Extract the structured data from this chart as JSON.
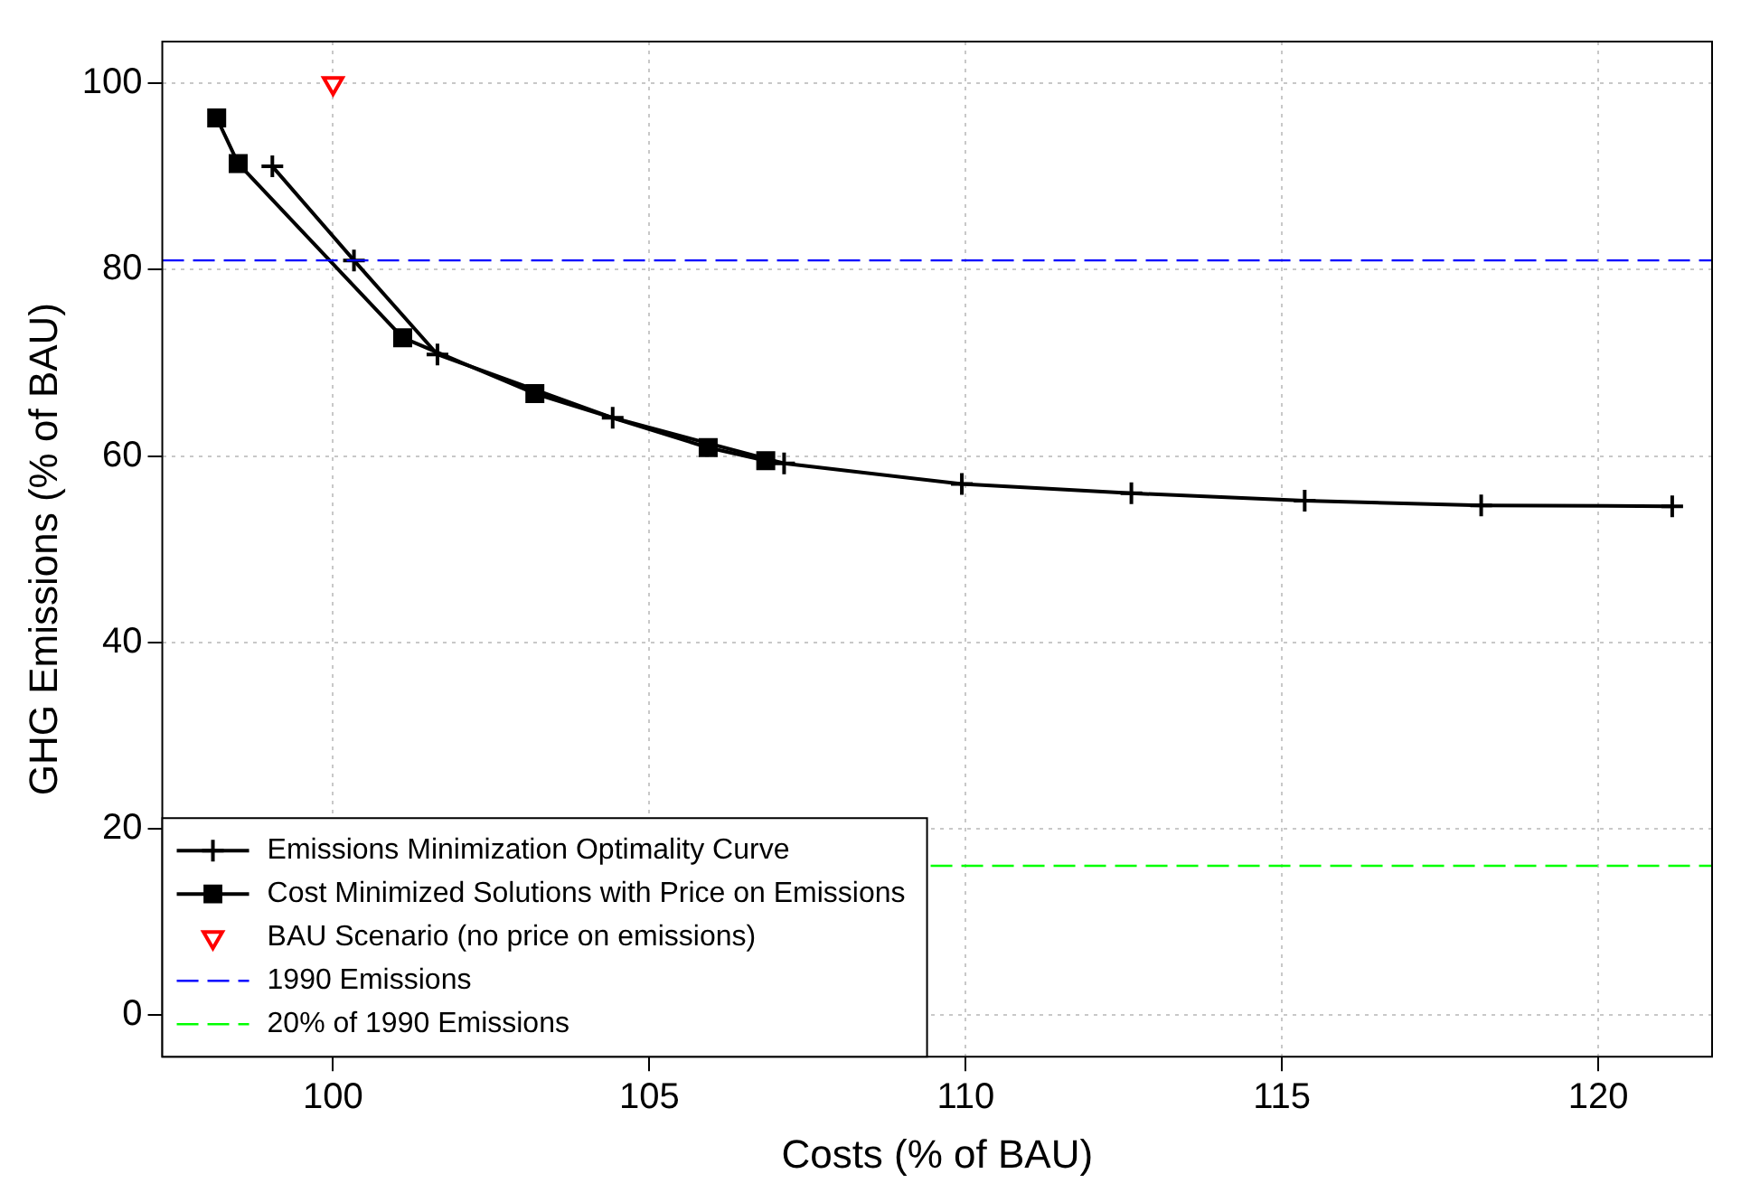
{
  "chart_data": {
    "type": "line",
    "xlabel": "Costs (% of BAU)",
    "ylabel": "GHG Emissions (% of BAU)",
    "xlim": [
      97.3,
      121.8
    ],
    "xticks": [
      100,
      105,
      110,
      115,
      120
    ],
    "ylim": [
      -4.5,
      104.5
    ],
    "yticks": [
      0,
      20,
      40,
      60,
      80,
      100
    ],
    "grid": true,
    "legend": "bottom left",
    "series": [
      {
        "name": "Emissions Minimization Optimality Curve",
        "marker": "cross",
        "color": "#000000",
        "x": [
          99.04,
          100.33,
          101.65,
          104.42,
          107.13,
          109.94,
          112.62,
          115.36,
          118.15,
          121.17
        ],
        "values": [
          91.1,
          81.0,
          70.9,
          64.1,
          59.2,
          57.0,
          56.0,
          55.2,
          54.7,
          54.6
        ]
      },
      {
        "name": "Cost Minimized Solutions with Price on Emissions",
        "marker": "square",
        "color": "#000000",
        "x": [
          98.16,
          98.5,
          101.1,
          103.19,
          105.93,
          106.84
        ],
        "values": [
          96.3,
          91.4,
          72.7,
          66.7,
          60.9,
          59.5
        ]
      },
      {
        "name": "BAU Scenario (no price on emissions)",
        "type": "scatter",
        "marker": "triangle",
        "color": "#ff0000",
        "x": [
          100
        ],
        "values": [
          100
        ]
      }
    ],
    "ref_lines": [
      {
        "axis": "y",
        "value": 81.0,
        "label": "1990 Emissions",
        "color": "#0000ff",
        "line_style": "dashed"
      },
      {
        "axis": "y",
        "value": 16.0,
        "label": "20% of 1990 Emissions",
        "color": "#00ff00",
        "line_style": "dashed"
      }
    ]
  }
}
